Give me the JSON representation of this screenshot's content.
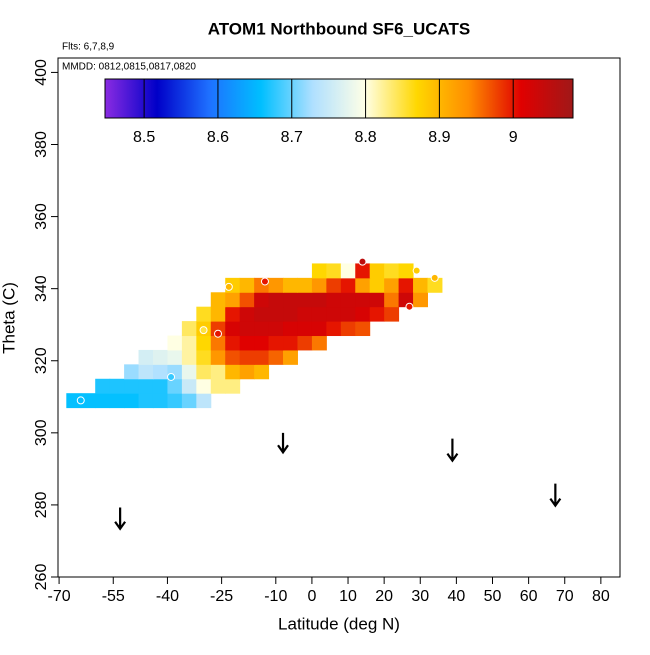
{
  "chart_data": {
    "type": "heatmap",
    "title": "ATOM1 Northbound SF6_UCATS",
    "subtitle": "Flts: 6,7,8,9",
    "annotation": "MMDD: 0812,0815,0817,0820",
    "x_label": "Latitude (deg N)",
    "y_label": "Theta (C)",
    "xlim": [
      -70.3,
      85.3
    ],
    "ylim": [
      260,
      404
    ],
    "xticks": [
      -70,
      -55,
      -40,
      -25,
      -10,
      0,
      10,
      20,
      30,
      40,
      50,
      60,
      70,
      80
    ],
    "yticks": [
      260,
      280,
      300,
      320,
      340,
      360,
      380,
      400
    ],
    "x": [
      -66,
      -62,
      -58,
      -54,
      -50,
      -46,
      -42,
      -38,
      -34,
      -30,
      -26,
      -22,
      -18,
      -14,
      -10,
      -6,
      -2,
      2,
      6,
      10,
      14,
      18,
      22,
      26,
      30,
      34
    ],
    "y": [
      309,
      313,
      317,
      321,
      325,
      329,
      333,
      337,
      341,
      345
    ],
    "values": [
      [
        8.66,
        8.66,
        8.66,
        8.66,
        8.66,
        8.67,
        8.67,
        8.68,
        8.7,
        8.74,
        null,
        null,
        null,
        null,
        null,
        null,
        null,
        null,
        null,
        null,
        null,
        null,
        null,
        null,
        null,
        null
      ],
      [
        null,
        null,
        8.67,
        8.67,
        8.67,
        8.67,
        8.67,
        8.7,
        8.75,
        8.8,
        8.83,
        8.83,
        null,
        null,
        null,
        null,
        null,
        null,
        null,
        null,
        null,
        null,
        null,
        null,
        null,
        null
      ],
      [
        null,
        null,
        null,
        null,
        8.72,
        8.74,
        8.73,
        8.72,
        8.78,
        8.84,
        8.83,
        8.9,
        8.92,
        8.9,
        null,
        null,
        null,
        null,
        null,
        null,
        null,
        null,
        null,
        null,
        null,
        null
      ],
      [
        null,
        null,
        null,
        null,
        null,
        8.76,
        8.77,
        8.78,
        8.82,
        8.86,
        8.93,
        8.97,
        8.98,
        8.98,
        8.96,
        8.92,
        null,
        null,
        null,
        null,
        null,
        null,
        null,
        null,
        null,
        null
      ],
      [
        null,
        null,
        null,
        null,
        null,
        null,
        null,
        8.8,
        8.82,
        8.87,
        8.95,
        9.0,
        9.01,
        9.01,
        9.0,
        9.0,
        8.98,
        8.95,
        null,
        null,
        null,
        null,
        null,
        null,
        null,
        null
      ],
      [
        null,
        null,
        null,
        null,
        null,
        null,
        null,
        null,
        8.84,
        8.88,
        8.98,
        9.02,
        9.03,
        9.03,
        9.03,
        9.02,
        9.02,
        9.02,
        9.0,
        8.98,
        8.97,
        null,
        null,
        null,
        null,
        null
      ],
      [
        null,
        null,
        null,
        null,
        null,
        null,
        null,
        null,
        null,
        8.86,
        8.9,
        9.0,
        9.03,
        9.04,
        9.04,
        9.04,
        9.03,
        9.03,
        9.03,
        9.03,
        9.02,
        9.0,
        8.98,
        null,
        null,
        null
      ],
      [
        null,
        null,
        null,
        null,
        null,
        null,
        null,
        null,
        null,
        null,
        8.9,
        8.92,
        8.97,
        9.03,
        9.04,
        9.04,
        9.04,
        9.04,
        9.03,
        9.03,
        9.03,
        9.03,
        8.95,
        9.03,
        8.93,
        null
      ],
      [
        null,
        null,
        null,
        null,
        null,
        null,
        null,
        null,
        null,
        null,
        null,
        8.88,
        8.9,
        8.95,
        8.93,
        8.9,
        8.9,
        8.93,
        8.98,
        9.0,
        8.92,
        8.88,
        8.92,
        9.0,
        8.9,
        8.86
      ],
      [
        null,
        null,
        null,
        null,
        null,
        null,
        null,
        null,
        null,
        null,
        null,
        null,
        null,
        null,
        null,
        null,
        null,
        8.87,
        8.86,
        8.8,
        9.0,
        8.88,
        8.86,
        8.87,
        null,
        null
      ]
    ],
    "points": {
      "x": [
        -64,
        -39,
        -30,
        -26,
        -23,
        -13,
        14,
        27,
        29,
        34
      ],
      "y": [
        309,
        315.5,
        328.5,
        327.5,
        340.5,
        342,
        347.5,
        335,
        345,
        343
      ],
      "values": [
        8.66,
        8.68,
        8.85,
        9.0,
        8.9,
        9.0,
        9.05,
        9.0,
        8.88,
        8.9
      ]
    },
    "arrows": {
      "x": [
        -53.1,
        -8,
        38.9,
        67.4
      ],
      "y_start": [
        279.3,
        300,
        298.4,
        285.9
      ],
      "y_end": [
        273.4,
        294.6,
        292.3,
        279.8
      ]
    },
    "colorbar": {
      "lim": [
        8.447,
        9.081
      ],
      "ticks": [
        8.5,
        8.6,
        8.7,
        8.8,
        8.9,
        9.0
      ],
      "colors": [
        "#8a2be2",
        "#0000c8",
        "#1e70ff",
        "#00bfff",
        "#b0e0ff",
        "#ffffe6",
        "#ffd700",
        "#ff8c00",
        "#e00000",
        "#a01818"
      ]
    }
  }
}
